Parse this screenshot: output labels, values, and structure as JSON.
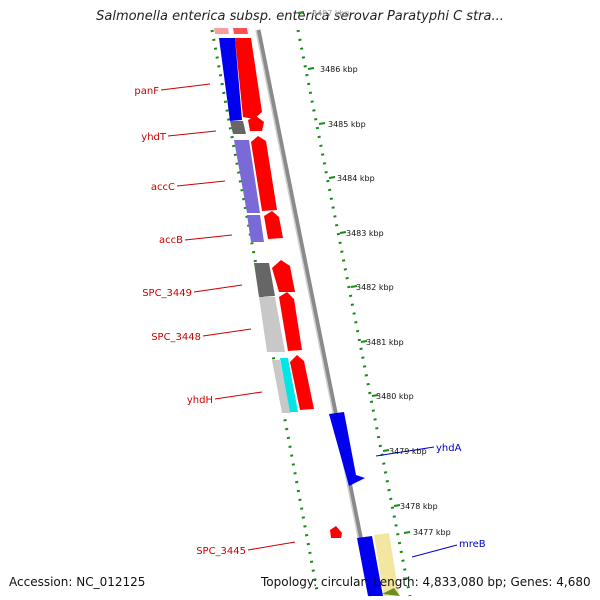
{
  "title": "Salmonella enterica subsp. enterica serovar Paratyphi C stra...",
  "footer": {
    "accession": "Accession: NC_012125",
    "topology": "Topology: circular; Length: 4,833,080 bp; Genes: 4,680"
  },
  "scale_labels": [
    "3487 kbp",
    "3486 kbp",
    "3485 kbp",
    "3484 kbp",
    "3483 kbp",
    "3482 kbp",
    "3481 kbp",
    "3480 kbp",
    "3479 kbp",
    "3478 kbp",
    "3477 kbp"
  ],
  "left_genes": [
    "panF",
    "yhdT",
    "accC",
    "accB",
    "SPC_3449",
    "SPC_3448",
    "yhdH",
    "SPC_3445"
  ],
  "right_genes": [
    "yhdA",
    "mreB"
  ],
  "colors": {
    "label_red": "#cc0000",
    "label_blue": "#0000cc",
    "tick_green": "#1a8a1a",
    "cds_red": "#ff0000",
    "blue": "#0000ee",
    "purple": "#7a6ad8",
    "gray_dark": "#666666",
    "gray_light": "#c8c8c8",
    "cyan": "#00e5e5",
    "yellow": "#f2e6a0",
    "backbone": "#8a8a8a"
  }
}
